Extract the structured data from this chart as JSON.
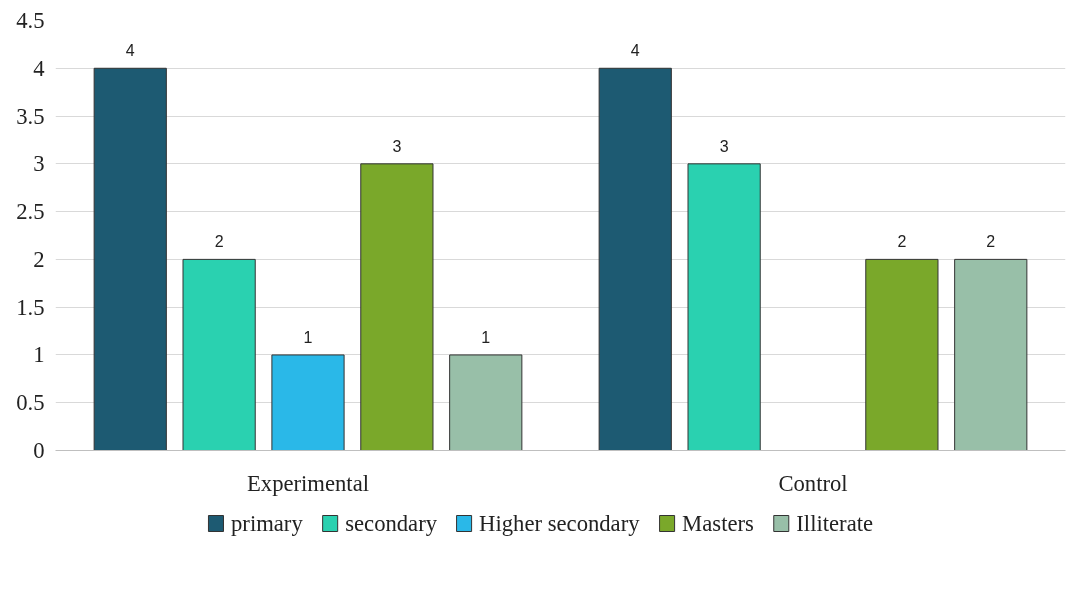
{
  "chart_data": {
    "type": "bar",
    "categories": [
      "Experimental",
      "Control"
    ],
    "series": [
      {
        "name": "primary",
        "color": "#1d5a72",
        "values": [
          4,
          4
        ]
      },
      {
        "name": "secondary",
        "color": "#2ad1b0",
        "values": [
          2,
          3
        ]
      },
      {
        "name": "Higher secondary",
        "color": "#2ab8e8",
        "values": [
          1,
          null
        ]
      },
      {
        "name": "Masters",
        "color": "#7aa82a",
        "values": [
          3,
          2
        ]
      },
      {
        "name": "Illiterate",
        "color": "#98bfa8",
        "values": [
          1,
          2
        ]
      }
    ],
    "ylim": [
      0,
      4.5
    ],
    "yticks": [
      0,
      0.5,
      1,
      1.5,
      2,
      2.5,
      3,
      3.5,
      4,
      4.5
    ],
    "grid": "y",
    "legend": "bottom",
    "data_labels": true
  }
}
